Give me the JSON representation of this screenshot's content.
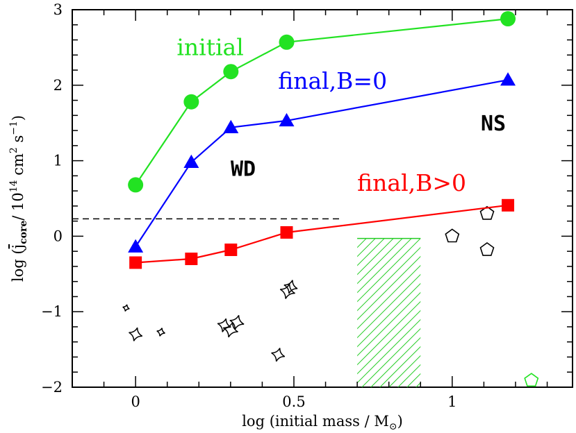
{
  "chart_data": {
    "type": "line",
    "xlabel": "log (initial mass / M",
    "xlabel_sub": "⊙",
    "xlabel_end": ")",
    "ylabel": "log (",
    "ylabel_j": "j",
    "ylabel_sub": "core",
    "ylabel_mid": "/ 10",
    "ylabel_exp1": "14",
    "ylabel_unit": " cm",
    "ylabel_exp2": "2",
    "ylabel_unit2": " s",
    "ylabel_exp3": "−1",
    "ylabel_end": ")",
    "xlim": [
      -0.2,
      1.38
    ],
    "ylim": [
      -2,
      3
    ],
    "x_ticks": [
      {
        "value": 0,
        "label": "0"
      },
      {
        "value": 0.5,
        "label": "0.5"
      },
      {
        "value": 1,
        "label": "1"
      }
    ],
    "y_ticks": [
      {
        "value": -2,
        "label": "−2"
      },
      {
        "value": -1,
        "label": "−1"
      },
      {
        "value": 0,
        "label": "0"
      },
      {
        "value": 1,
        "label": "1"
      },
      {
        "value": 2,
        "label": "2"
      },
      {
        "value": 3,
        "label": "3"
      }
    ],
    "series": [
      {
        "name": "initial",
        "color": "#22e222",
        "marker": "circle",
        "x": [
          0,
          0.176,
          0.301,
          0.477,
          1.176
        ],
        "y": [
          0.68,
          1.78,
          2.18,
          2.57,
          2.88
        ],
        "label_at": [
          0.13,
          2.4
        ]
      },
      {
        "name": "final,B=0",
        "color": "#0000ff",
        "marker": "triangle",
        "x": [
          0,
          0.176,
          0.301,
          0.477,
          1.176
        ],
        "y": [
          -0.14,
          0.98,
          1.44,
          1.53,
          2.07
        ],
        "label_at": [
          0.45,
          1.95
        ]
      },
      {
        "name": "final,B>0",
        "color": "#ff0000",
        "marker": "square",
        "x": [
          0,
          0.176,
          0.301,
          0.477,
          1.176
        ],
        "y": [
          -0.35,
          -0.3,
          -0.18,
          0.05,
          0.41
        ],
        "label_at": [
          0.7,
          0.6
        ]
      }
    ],
    "threshold_line": {
      "y": 0.23,
      "x_range": [
        -0.2,
        0.65
      ],
      "style": "dashed",
      "color": "#000000"
    },
    "hatched_region": {
      "x_range": [
        0.7,
        0.9
      ],
      "y_range": [
        -2,
        -0.03
      ],
      "color": "#22cc22"
    },
    "region_labels": [
      {
        "text": "WD",
        "at": [
          0.34,
          0.8
        ]
      },
      {
        "text": "NS",
        "at": [
          1.13,
          1.4
        ]
      }
    ],
    "observed_wd": [
      {
        "x": -0.03,
        "y": -0.95,
        "size": 0.45
      },
      {
        "x": 0.0,
        "y": -1.3,
        "size": 0.9
      },
      {
        "x": 0.08,
        "y": -1.27,
        "size": 0.55
      },
      {
        "x": 0.28,
        "y": -1.18,
        "size": 0.9
      },
      {
        "x": 0.3,
        "y": -1.24,
        "size": 1.0
      },
      {
        "x": 0.32,
        "y": -1.14,
        "size": 0.95
      },
      {
        "x": 0.45,
        "y": -1.57,
        "size": 0.9
      },
      {
        "x": 0.48,
        "y": -0.73,
        "size": 1.0
      },
      {
        "x": 0.49,
        "y": -0.67,
        "size": 0.9
      }
    ],
    "observed_ns": [
      {
        "x": 1.0,
        "y": 0.0,
        "color": "#000000"
      },
      {
        "x": 1.11,
        "y": 0.3,
        "color": "#000000"
      },
      {
        "x": 1.11,
        "y": -0.18,
        "color": "#000000"
      },
      {
        "x": 1.25,
        "y": -1.91,
        "color": "#22e222"
      }
    ],
    "grid": false,
    "legend": "inline labels"
  }
}
